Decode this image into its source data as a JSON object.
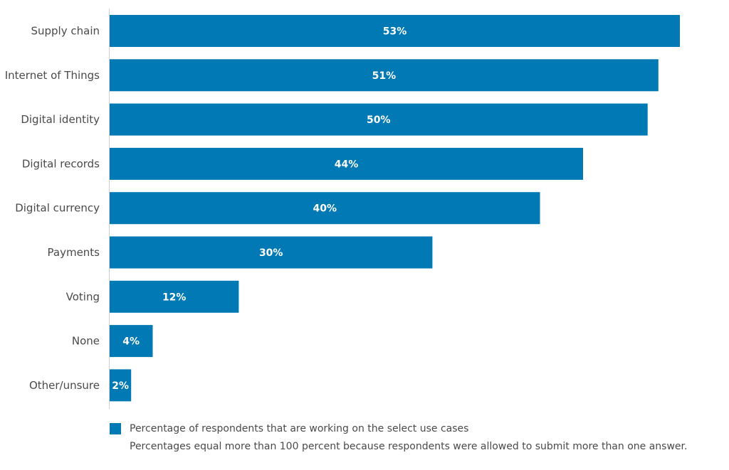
{
  "chart_data": {
    "type": "bar",
    "orientation": "horizontal",
    "categories": [
      "Supply chain",
      "Internet of Things",
      "Digital identity",
      "Digital records",
      "Digital currency",
      "Payments",
      "Voting",
      "None",
      "Other/unsure"
    ],
    "values": [
      53,
      51,
      50,
      44,
      40,
      30,
      12,
      4,
      2
    ],
    "value_labels": [
      "53%",
      "51%",
      "50%",
      "44%",
      "40%",
      "30%",
      "12%",
      "4%",
      "2%"
    ],
    "xlim": [
      0,
      53
    ],
    "grid": false,
    "legend_position": "bottom-left",
    "series_name": "Percentage of respondents that are working on the select use cases",
    "note": "Percentages equal more than 100 percent because respondents were allowed to submit more than one answer.",
    "bar_color": "#0079b5",
    "axis_color": "#d0d0d0"
  }
}
